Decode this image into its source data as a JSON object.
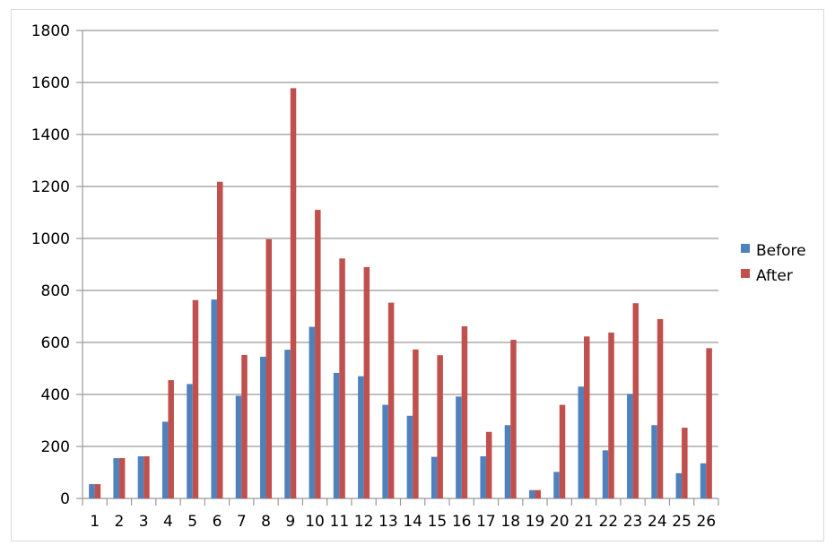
{
  "chart_data": {
    "type": "bar",
    "categories": [
      "1",
      "2",
      "3",
      "4",
      "5",
      "6",
      "7",
      "8",
      "9",
      "10",
      "11",
      "12",
      "13",
      "14",
      "15",
      "16",
      "17",
      "18",
      "19",
      "20",
      "21",
      "22",
      "23",
      "24",
      "25",
      "26"
    ],
    "series": [
      {
        "name": "Before",
        "color": "#4f81bd",
        "values": [
          55,
          155,
          162,
          295,
          440,
          765,
          395,
          545,
          572,
          660,
          483,
          470,
          360,
          318,
          160,
          392,
          162,
          282,
          32,
          102,
          430,
          185,
          402,
          282,
          97,
          135
        ]
      },
      {
        "name": "After",
        "color": "#c0504d",
        "values": [
          55,
          155,
          162,
          455,
          763,
          1218,
          552,
          997,
          1578,
          1110,
          923,
          890,
          753,
          573,
          551,
          662,
          256,
          610,
          32,
          360,
          623,
          638,
          751,
          690,
          272,
          578
        ]
      }
    ],
    "ylim": [
      0,
      1800
    ],
    "yticks": [
      "0",
      "200",
      "400",
      "600",
      "800",
      "1000",
      "1200",
      "1400",
      "1600",
      "1800"
    ],
    "grid": true,
    "legend_position": "right"
  }
}
